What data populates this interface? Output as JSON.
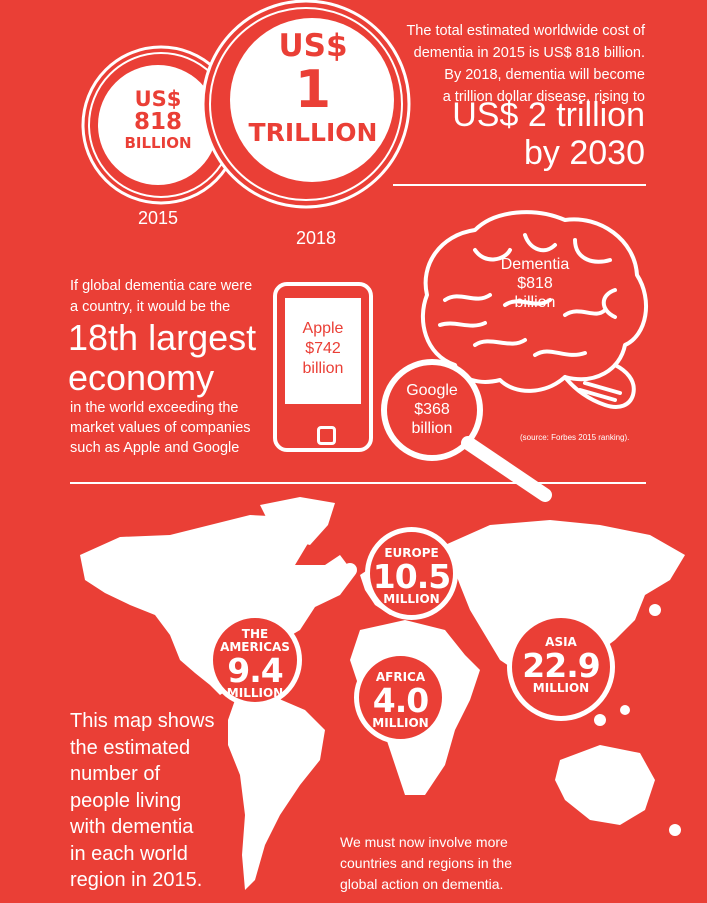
{
  "cost": {
    "coin_2015": {
      "currency": "US$",
      "amount": "818",
      "unit": "BILLION",
      "year": "2015"
    },
    "coin_2018": {
      "currency": "US$",
      "amount": "1",
      "unit": "TRILLION",
      "year": "2018"
    },
    "text_line1": "The total estimated worldwide cost of",
    "text_line2": "dementia in 2015 is US$ 818 billion.",
    "text_line3": "By 2018, dementia will become",
    "text_line4": "a trillion dollar disease, rising to",
    "big_line1": "US$ 2 trillion",
    "big_line2": "by 2030"
  },
  "economy": {
    "intro_line1": "If global dementia care were",
    "intro_line2": "a country, it would be the",
    "big_line1": "18th largest",
    "big_line2": "economy",
    "detail_line1": "in the world exceeding the",
    "detail_line2": "market values of companies",
    "detail_line3": "such as Apple and Google",
    "apple": {
      "name": "Apple",
      "value": "$742",
      "unit": "billion"
    },
    "dementia": {
      "name": "Dementia",
      "value": "$818",
      "unit": "billion"
    },
    "google": {
      "name": "Google",
      "value": "$368",
      "unit": "billion"
    },
    "source": "(source: Forbes 2015 ranking)."
  },
  "map": {
    "regions": {
      "europe": {
        "name": "EUROPE",
        "value": "10.5",
        "unit": "MILLION"
      },
      "americas": {
        "name_line1": "THE",
        "name_line2": "AMERICAS",
        "value": "9.4",
        "unit": "MILLION"
      },
      "asia": {
        "name": "ASIA",
        "value": "22.9",
        "unit": "MILLION"
      },
      "africa": {
        "name": "AFRICA",
        "value": "4.0",
        "unit": "MILLION"
      }
    },
    "caption_lines": [
      "This map shows",
      "the estimated",
      "number of",
      "people living",
      "with dementia",
      "in each world",
      "region in 2015."
    ],
    "action_line1": "We must now involve more",
    "action_line2": "countries and regions in the",
    "action_line3": "global action on dementia."
  },
  "colors": {
    "background": "#ea3f36",
    "foreground": "#ffffff"
  }
}
